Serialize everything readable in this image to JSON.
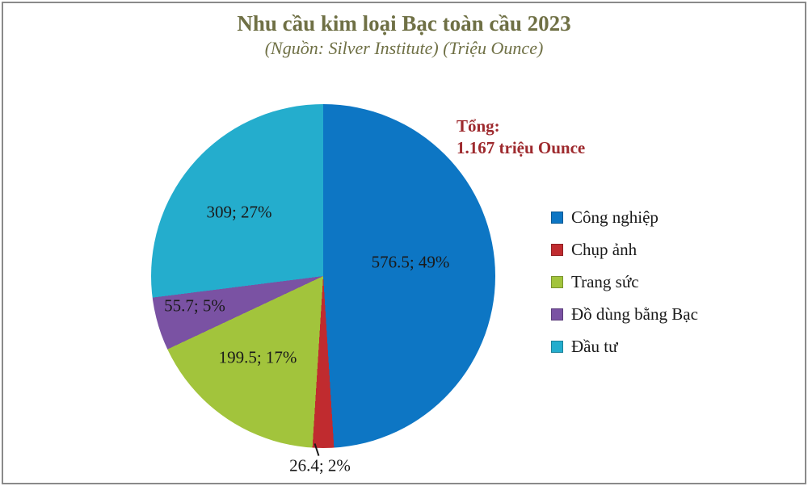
{
  "header": {
    "title": "Nhu cầu kim loại Bạc toàn cầu 2023",
    "subtitle": "(Nguồn: Silver Institute) (Triệu Ounce)"
  },
  "total": {
    "label": "Tổng:",
    "value": "1.167 triệu Ounce"
  },
  "chart_data": {
    "type": "pie",
    "title": "Nhu cầu kim loại Bạc toàn cầu 2023",
    "source": "Silver Institute",
    "unit": "Triệu Ounce",
    "total": 1167,
    "start_angle_deg": 0,
    "direction": "clockwise",
    "legend_position": "right",
    "colors": {
      "title_text": "#6f7045",
      "total_text": "#9e2a2e",
      "label_text": "#1a1a1a",
      "frame_border": "#8a8a8a"
    },
    "slices": [
      {
        "label": "Công nghiệp",
        "value": 576.5,
        "pct": 49,
        "color": "#0d76c4",
        "data_label": "576.5; 49%"
      },
      {
        "label": "Chụp ảnh",
        "value": 26.4,
        "pct": 2,
        "color": "#c02b2f",
        "data_label": "26.4; 2%"
      },
      {
        "label": "Trang sức",
        "value": 199.5,
        "pct": 17,
        "color": "#a2c43c",
        "data_label": "199.5; 17%"
      },
      {
        "label": "Đồ dùng bằng Bạc",
        "value": 55.7,
        "pct": 5,
        "color": "#7a52a3",
        "data_label": "55.7; 5%"
      },
      {
        "label": "Đầu tư",
        "value": 309,
        "pct": 27,
        "color": "#24adcd",
        "data_label": "309; 27%"
      }
    ]
  }
}
